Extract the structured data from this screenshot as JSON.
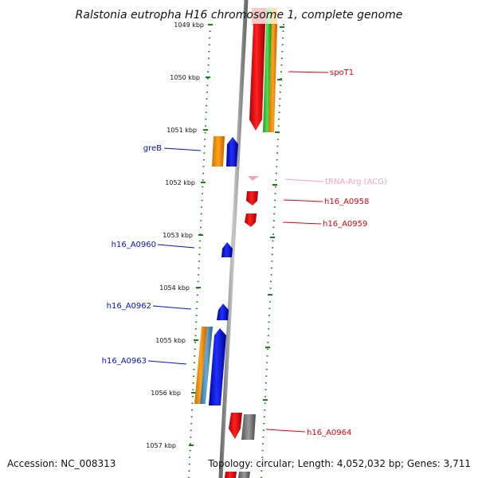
{
  "title": "Ralstonia eutropha H16 chromosome 1, complete genome",
  "accession": "Accession: NC_008313",
  "topology": "Topology: circular; Length: 4,052,032 bp; Genes: 3,711",
  "ticks": [
    "1049 kbp",
    "1050 kbp",
    "1051 kbp",
    "1052 kbp",
    "1053 kbp",
    "1054 kbp",
    "1055 kbp",
    "1056 kbp",
    "1057 kbp"
  ],
  "colors": {
    "cds_forward": "#e8000b",
    "cds_reverse": "#0010e0",
    "trna": "#f4a3c8",
    "orange": "#ff9900",
    "green": "#33cc33",
    "teal": "#4a90b8",
    "gray": "#777777",
    "tick_green": "#1a7f1a",
    "backbone": "#999999"
  },
  "features": [
    {
      "name": "spoT1",
      "strand": "forward",
      "color_key": "cds_forward"
    },
    {
      "name": "greB",
      "strand": "reverse",
      "color_key": "cds_reverse"
    },
    {
      "name": "tRNA-Arg (ACG)",
      "strand": "forward",
      "color_key": "trna"
    },
    {
      "name": "h16_A0958",
      "strand": "forward",
      "color_key": "cds_forward"
    },
    {
      "name": "h16_A0959",
      "strand": "forward",
      "color_key": "cds_forward"
    },
    {
      "name": "h16_A0960",
      "strand": "reverse",
      "color_key": "cds_reverse"
    },
    {
      "name": "h16_A0962",
      "strand": "reverse",
      "color_key": "cds_reverse"
    },
    {
      "name": "h16_A0963",
      "strand": "reverse",
      "color_key": "cds_reverse"
    },
    {
      "name": "h16_A0964",
      "strand": "forward",
      "color_key": "cds_forward"
    }
  ]
}
